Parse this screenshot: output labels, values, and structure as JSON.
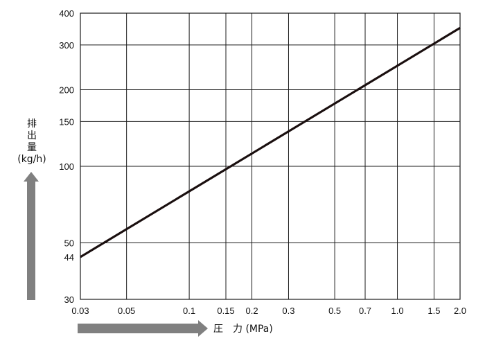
{
  "chart_data": {
    "type": "line",
    "x_scale": "log",
    "y_scale": "log",
    "xlim": [
      0.03,
      2.0
    ],
    "ylim": [
      30,
      400
    ],
    "x_ticks": [
      0.03,
      0.05,
      0.1,
      0.15,
      0.2,
      0.3,
      0.5,
      0.7,
      1.0,
      1.5,
      2.0
    ],
    "x_tick_labels": [
      "0.03",
      "0.05",
      "0.1",
      "0.15",
      "0.2",
      "0.3",
      "0.5",
      "0.7",
      "1.0",
      "1.5",
      "2.0"
    ],
    "y_ticks": [
      30,
      44,
      50,
      100,
      150,
      200,
      300,
      400
    ],
    "y_tick_labels": [
      "30",
      "44",
      "50",
      "100",
      "150",
      "200",
      "300",
      "400"
    ],
    "y_gridlines": [
      30,
      50,
      100,
      150,
      200,
      300,
      400
    ],
    "grid": true,
    "xlabel": "圧　力 (MPa)",
    "ylabel_lines": [
      "排",
      "出",
      "量",
      "(kg/h)"
    ],
    "series": [
      {
        "x": [
          0.03,
          2.0
        ],
        "y": [
          44,
          350
        ]
      }
    ],
    "colors": {
      "line": "#1a0f0f",
      "grid": "#1a1a1a",
      "arrow": "#808080"
    }
  }
}
